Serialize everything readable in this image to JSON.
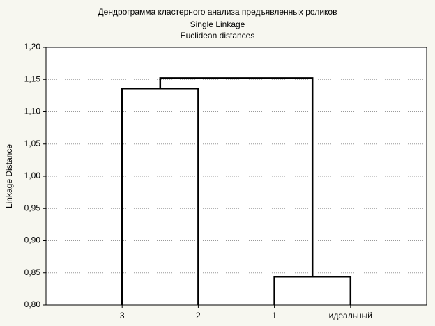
{
  "chart_data": {
    "type": "dendrogram",
    "title": "Дендрограмма кластерного анализа предъявленных роликов",
    "subtitle": "Single Linkage",
    "subtitle2": "Euclidean distances",
    "ylabel": "Linkage Distance",
    "leaves": [
      "3",
      "2",
      "1",
      "идеальный"
    ],
    "merges": [
      {
        "join": [
          0,
          1
        ],
        "height": 1.136
      },
      {
        "join": [
          2,
          3
        ],
        "height": 0.844
      },
      {
        "join": [
          4,
          5
        ],
        "height": 1.152
      }
    ],
    "ylim": [
      0.8,
      1.2
    ],
    "yticks": [
      {
        "value": 0.8,
        "label": "0,80"
      },
      {
        "value": 0.85,
        "label": "0,85"
      },
      {
        "value": 0.9,
        "label": "0,90"
      },
      {
        "value": 0.95,
        "label": "0,95"
      },
      {
        "value": 1.0,
        "label": "1,00"
      },
      {
        "value": 1.05,
        "label": "1,05"
      },
      {
        "value": 1.1,
        "label": "1,10"
      },
      {
        "value": 1.15,
        "label": "1,15"
      },
      {
        "value": 1.2,
        "label": "1,20"
      }
    ],
    "grid": true,
    "color": "#000000"
  }
}
